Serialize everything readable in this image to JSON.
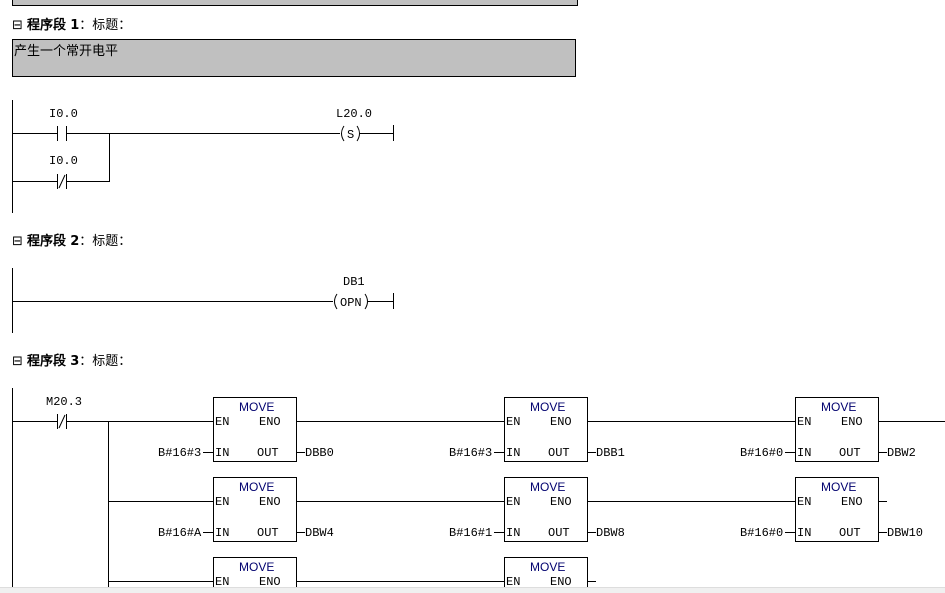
{
  "networks": [
    {
      "header_icon": "collapse-icon",
      "label": "程序段",
      "number": "1",
      "title": "：标题：",
      "comment": "产生一个常开电平",
      "contacts": [
        {
          "address": "I0.0",
          "type": "NO"
        },
        {
          "address": "I0.0",
          "type": "NC"
        }
      ],
      "coil": {
        "address": "L20.0",
        "symbol": "S"
      }
    },
    {
      "header_icon": "collapse-icon",
      "label": "程序段",
      "number": "2",
      "title": "：标题：",
      "coil": {
        "address": "DB1",
        "symbol": "OPN"
      }
    },
    {
      "header_icon": "collapse-icon",
      "label": "程序段",
      "number": "3",
      "title": "：标题：",
      "contacts": [
        {
          "address": "M20.3",
          "type": "NC"
        }
      ],
      "box_labels": {
        "name": "MOVE",
        "en": "EN",
        "eno": "ENO",
        "in": "IN",
        "out": "OUT"
      },
      "boxes": [
        {
          "in": "B#16#3",
          "out": "DBB0"
        },
        {
          "in": "B#16#3",
          "out": "DBB1"
        },
        {
          "in": "B#16#0",
          "out": "DBW2"
        },
        {
          "in": "B#16#A",
          "out": "DBW4"
        },
        {
          "in": "B#16#1",
          "out": "DBW8"
        },
        {
          "in": "B#16#0",
          "out": "DBW10"
        },
        {},
        {}
      ]
    }
  ]
}
